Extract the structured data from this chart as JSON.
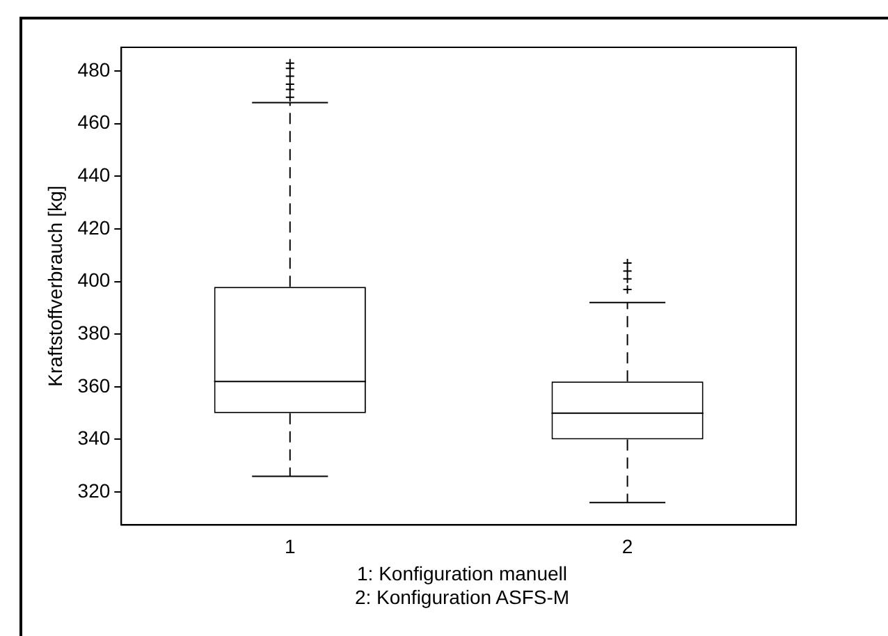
{
  "chart_data": {
    "type": "box",
    "ylabel": "Kraftstoffverbrauch [kg]",
    "categories": [
      "1",
      "2"
    ],
    "boxes": [
      {
        "low": 326,
        "q1": 350,
        "median": 362,
        "q3": 398,
        "high": 468,
        "outliers": [
          470,
          473,
          475,
          478,
          481,
          483
        ]
      },
      {
        "low": 316,
        "q1": 340,
        "median": 350,
        "q3": 362,
        "high": 392,
        "outliers": [
          397,
          401,
          404,
          407
        ]
      }
    ],
    "ylim": [
      307.5,
      489
    ],
    "yticks": [
      320,
      340,
      360,
      380,
      400,
      420,
      440,
      460,
      480
    ],
    "grid": false,
    "legend": false,
    "marker": "cross",
    "annotations": [
      "1: Konfiguration manuell",
      "2: Konfiguration ASFS-M"
    ]
  }
}
